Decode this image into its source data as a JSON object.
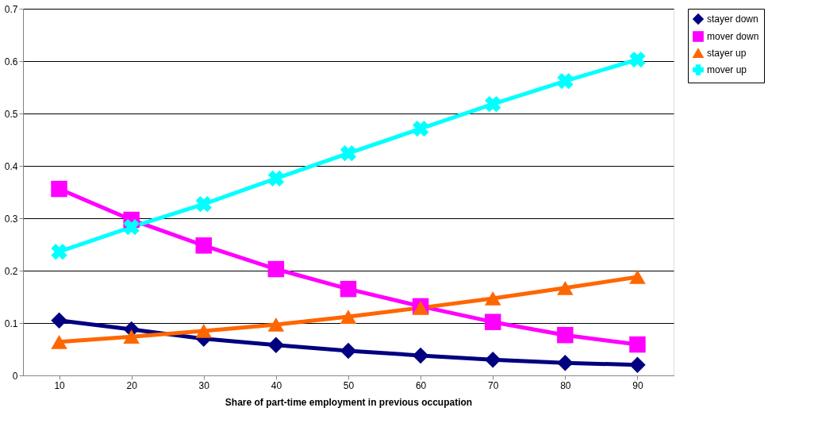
{
  "chart_data": {
    "type": "line",
    "xlabel": "Share of part-time employment in previous occupation",
    "categories": [
      "10",
      "20",
      "30",
      "40",
      "50",
      "60",
      "70",
      "80",
      "90"
    ],
    "series": [
      {
        "name": "stayer down",
        "color": "#000080",
        "marker": "diamond",
        "values": [
          0.105,
          0.088,
          0.07,
          0.058,
          0.047,
          0.038,
          0.03,
          0.024,
          0.02
        ]
      },
      {
        "name": "mover down",
        "color": "#ff00ff",
        "marker": "square",
        "values": [
          0.356,
          0.297,
          0.248,
          0.203,
          0.165,
          0.132,
          0.102,
          0.077,
          0.059
        ]
      },
      {
        "name": "stayer up",
        "color": "#ff6600",
        "marker": "triangle",
        "values": [
          0.064,
          0.074,
          0.085,
          0.097,
          0.112,
          0.129,
          0.147,
          0.167,
          0.188
        ]
      },
      {
        "name": "mover up",
        "color": "#00ffff",
        "marker": "cross",
        "values": [
          0.236,
          0.283,
          0.327,
          0.376,
          0.424,
          0.471,
          0.518,
          0.562,
          0.603
        ]
      }
    ],
    "ylim": [
      0,
      0.7
    ],
    "yticks": [
      0,
      0.1,
      0.2,
      0.3,
      0.4,
      0.5,
      0.6,
      0.7
    ],
    "grid": "y",
    "legend": "right",
    "line_style": "solid"
  }
}
